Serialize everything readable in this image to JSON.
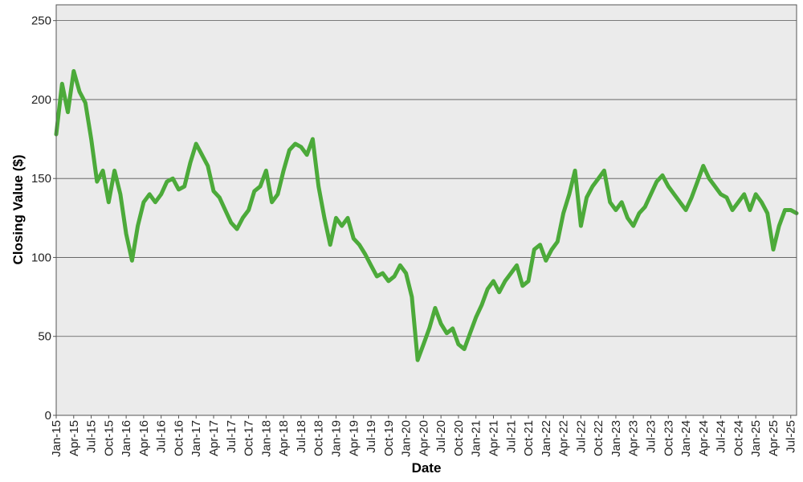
{
  "chart_data": {
    "type": "line",
    "title": "",
    "xlabel": "Date",
    "ylabel": "Closing Value ($)",
    "ylim": [
      0,
      260
    ],
    "yticks": [
      0,
      50,
      100,
      150,
      200,
      250
    ],
    "xlim": [
      "2015-01",
      "2025-08"
    ],
    "xtick_labels": [
      "Jan-15",
      "Apr-15",
      "Jul-15",
      "Oct-15",
      "Jan-16",
      "Apr-16",
      "Jul-16",
      "Oct-16",
      "Jan-17",
      "Apr-17",
      "Jul-17",
      "Oct-17",
      "Jan-18",
      "Apr-18",
      "Jul-18",
      "Oct-18",
      "Jan-19",
      "Apr-19",
      "Jul-19",
      "Oct-19",
      "Jan-20",
      "Apr-20",
      "Jul-20",
      "Oct-20",
      "Jan-21",
      "Apr-21",
      "Jul-21",
      "Oct-21",
      "Jan-22",
      "Apr-22",
      "Jul-22",
      "Oct-22",
      "Jan-23",
      "Apr-23",
      "Jul-23",
      "Oct-23",
      "Jan-24",
      "Apr-24",
      "Jul-24",
      "Oct-24",
      "Jan-25",
      "Apr-25",
      "Jul-25"
    ],
    "grid": "horizontal",
    "background_color": "#ebebeb",
    "line_color": "#4caa3a",
    "series": [
      {
        "x": [
          "2015-01",
          "2015-02",
          "2015-03",
          "2015-04",
          "2015-05",
          "2015-06",
          "2015-07",
          "2015-08",
          "2015-09",
          "2015-10",
          "2015-11",
          "2015-12",
          "2016-01",
          "2016-02",
          "2016-03",
          "2016-04",
          "2016-05",
          "2016-06",
          "2016-07",
          "2016-08",
          "2016-09",
          "2016-10",
          "2016-11",
          "2016-12",
          "2017-01",
          "2017-02",
          "2017-03",
          "2017-04",
          "2017-05",
          "2017-06",
          "2017-07",
          "2017-08",
          "2017-09",
          "2017-10",
          "2017-11",
          "2017-12",
          "2018-01",
          "2018-02",
          "2018-03",
          "2018-04",
          "2018-05",
          "2018-06",
          "2018-07",
          "2018-08",
          "2018-09",
          "2018-10",
          "2018-11",
          "2018-12",
          "2019-01",
          "2019-02",
          "2019-03",
          "2019-04",
          "2019-05",
          "2019-06",
          "2019-07",
          "2019-08",
          "2019-09",
          "2019-10",
          "2019-11",
          "2019-12",
          "2020-01",
          "2020-02",
          "2020-03",
          "2020-04",
          "2020-05",
          "2020-06",
          "2020-07",
          "2020-08",
          "2020-09",
          "2020-10",
          "2020-11",
          "2020-12",
          "2021-01",
          "2021-02",
          "2021-03",
          "2021-04",
          "2021-05",
          "2021-06",
          "2021-07",
          "2021-08",
          "2021-09",
          "2021-10",
          "2021-11",
          "2021-12",
          "2022-01",
          "2022-02",
          "2022-03",
          "2022-04",
          "2022-05",
          "2022-06",
          "2022-07",
          "2022-08",
          "2022-09",
          "2022-10",
          "2022-11",
          "2022-12",
          "2023-01",
          "2023-02",
          "2023-03",
          "2023-04",
          "2023-05",
          "2023-06",
          "2023-07",
          "2023-08",
          "2023-09",
          "2023-10",
          "2023-11",
          "2023-12",
          "2024-01",
          "2024-02",
          "2024-03",
          "2024-04",
          "2024-05",
          "2024-06",
          "2024-07",
          "2024-08",
          "2024-09",
          "2024-10",
          "2024-11",
          "2024-12",
          "2025-01",
          "2025-02",
          "2025-03",
          "2025-04",
          "2025-05",
          "2025-06",
          "2025-07",
          "2025-08"
        ],
        "y": [
          178,
          210,
          192,
          218,
          205,
          198,
          175,
          148,
          155,
          135,
          155,
          140,
          115,
          98,
          120,
          135,
          140,
          135,
          140,
          148,
          150,
          143,
          145,
          160,
          172,
          165,
          158,
          142,
          138,
          130,
          122,
          118,
          125,
          130,
          142,
          145,
          155,
          135,
          140,
          155,
          168,
          172,
          170,
          165,
          175,
          145,
          125,
          108,
          125,
          120,
          125,
          112,
          108,
          102,
          95,
          88,
          90,
          85,
          88,
          95,
          90,
          75,
          35,
          45,
          55,
          68,
          58,
          52,
          55,
          45,
          42,
          52,
          62,
          70,
          80,
          85,
          78,
          85,
          90,
          95,
          82,
          85,
          105,
          108,
          98,
          105,
          110,
          128,
          140,
          155,
          120,
          138,
          145,
          150,
          155,
          135,
          130,
          135,
          125,
          120,
          128,
          132,
          140,
          148,
          152,
          145,
          140,
          135,
          130,
          138,
          148,
          158,
          150,
          145,
          140,
          138,
          130,
          135,
          140,
          130,
          140,
          135,
          128,
          105,
          120,
          130,
          130,
          128
        ]
      }
    ]
  }
}
